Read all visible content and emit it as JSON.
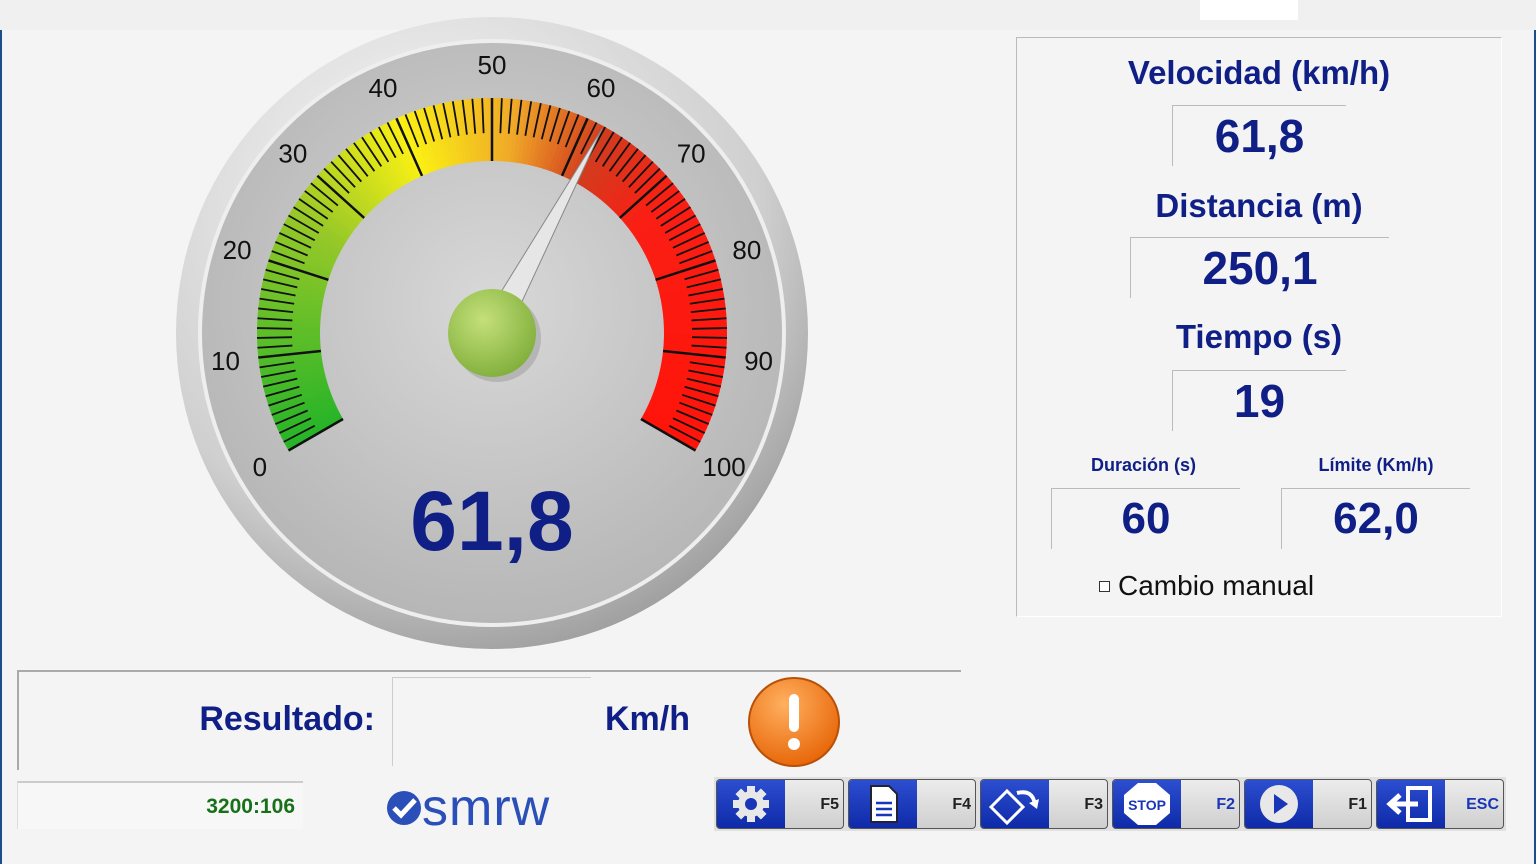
{
  "gauge": {
    "min": 0,
    "max": 100,
    "value": 61.8,
    "display": "61,8",
    "tick_labels": [
      "0",
      "10",
      "20",
      "30",
      "40",
      "50",
      "60",
      "70",
      "80",
      "90",
      "100"
    ]
  },
  "panel": {
    "velocidad_label": "Velocidad (km/h)",
    "velocidad_value": "61,8",
    "distancia_label": "Distancia (m)",
    "distancia_value": "250,1",
    "tiempo_label": "Tiempo (s)",
    "tiempo_value": "19",
    "duracion_label": "Duración (s)",
    "duracion_value": "60",
    "limite_label": "Límite (Km/h)",
    "limite_value": "62,0",
    "manual_label": "Cambio manual",
    "manual_checked": false
  },
  "result": {
    "label": "Resultado:",
    "value": "",
    "unit": "Km/h",
    "status_icon": "warning-exclamation-icon",
    "status_color": "#f07d16"
  },
  "status": {
    "code": "3200:106"
  },
  "logo": {
    "text": "smrw"
  },
  "toolbar": [
    {
      "icon": "gear-icon",
      "key": "F5"
    },
    {
      "icon": "document-icon",
      "key": "F4"
    },
    {
      "icon": "rotate-disk-icon",
      "key": "F3"
    },
    {
      "icon": "stop-icon",
      "key": "F2",
      "text": "STOP"
    },
    {
      "icon": "play-icon",
      "key": "F1"
    },
    {
      "icon": "exit-icon",
      "key": "ESC"
    }
  ],
  "colors": {
    "accent": "#0f1f86",
    "button": "#1a36b8",
    "code": "#187018"
  }
}
